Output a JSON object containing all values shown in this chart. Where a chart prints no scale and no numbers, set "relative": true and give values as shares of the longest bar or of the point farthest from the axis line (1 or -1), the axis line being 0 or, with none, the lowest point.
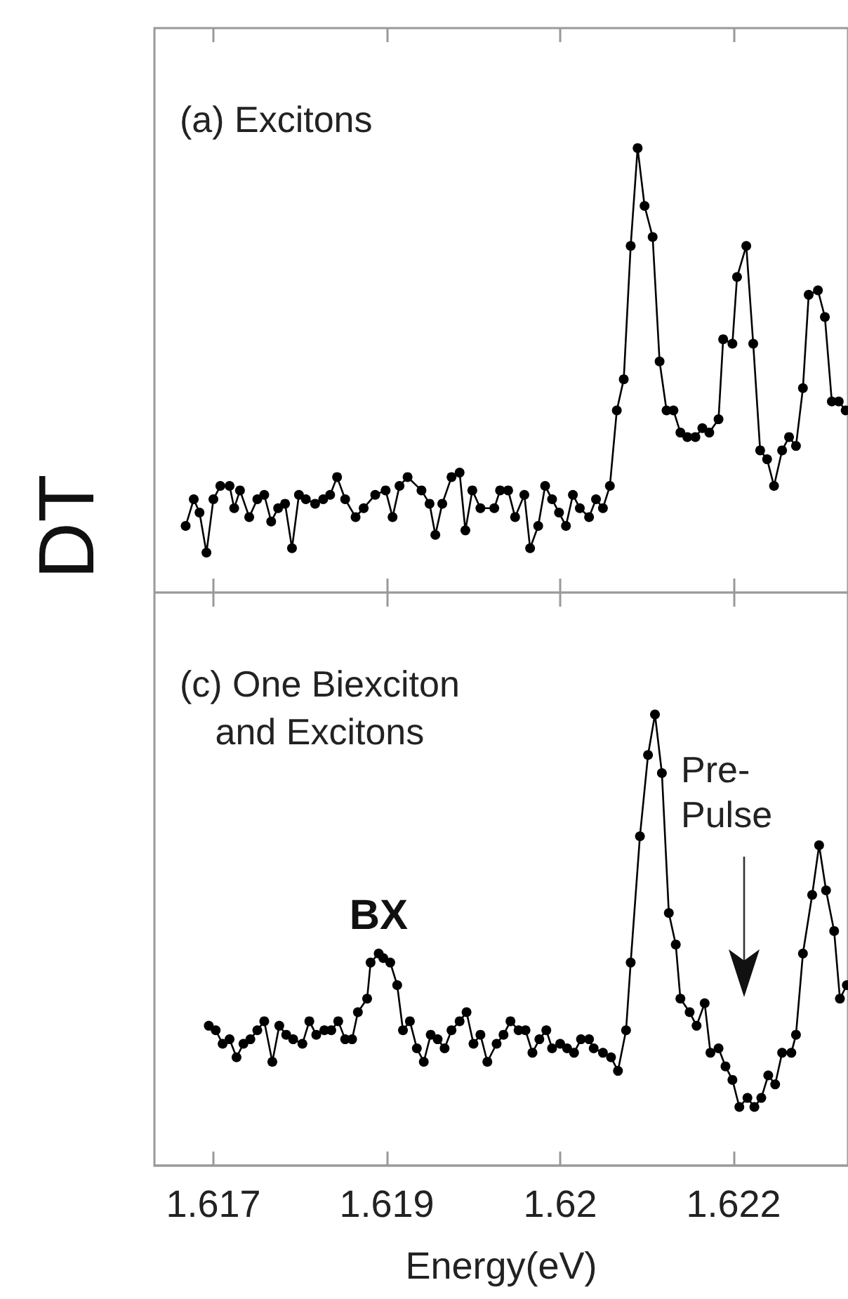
{
  "chart_data": [
    {
      "type": "line",
      "ylabel": "DT",
      "annotations": [
        "(a) Excitons"
      ],
      "relative": true,
      "marker": "circle",
      "line_style": "solid",
      "grid": false,
      "tick_labels": false,
      "xlim": [
        1.61699,
        1.62299
      ],
      "xticks": [
        {
          "value": 1.6175,
          "label": null
        },
        {
          "value": 1.619,
          "label": null
        },
        {
          "value": 1.6205,
          "label": null
        },
        {
          "value": 1.622,
          "label": null
        }
      ],
      "series": [
        {
          "color": "#000000",
          "x": [
            1.61726,
            1.61733,
            1.61738,
            1.61744,
            1.6175,
            1.61756,
            1.61764,
            1.61768,
            1.61773,
            1.61781,
            1.61788,
            1.61794,
            1.618,
            1.61806,
            1.61812,
            1.61818,
            1.61824,
            1.6183,
            1.61838,
            1.61845,
            1.61851,
            1.61857,
            1.61864,
            1.61873,
            1.6188,
            1.6189,
            1.61899,
            1.61905,
            1.61911,
            1.61918,
            1.6193,
            1.61937,
            1.61942,
            1.61948,
            1.61956,
            1.61963,
            1.61968,
            1.61974,
            1.61981,
            1.61993,
            1.61998,
            1.62005,
            1.62011,
            1.62019,
            1.62024,
            1.62031,
            1.62037,
            1.62043,
            1.62049,
            1.62055,
            1.62061,
            1.62067,
            1.62075,
            1.62081,
            1.62087,
            1.62093,
            1.62099,
            1.62105,
            1.62111,
            1.62117,
            1.62123,
            1.6213,
            1.62136,
            1.62142,
            1.62148,
            1.62154,
            1.6216,
            1.62167,
            1.62173,
            1.62179,
            1.62187,
            1.62191,
            1.62199,
            1.62203,
            1.62211,
            1.62217,
            1.62223,
            1.62229,
            1.62235,
            1.62242,
            1.62248,
            1.62254,
            1.6226,
            1.62265,
            1.62273,
            1.62279,
            1.62285,
            1.62291,
            1.62297
          ],
          "values": [
            0.15,
            0.21,
            0.18,
            0.09,
            0.21,
            0.24,
            0.24,
            0.19,
            0.23,
            0.17,
            0.21,
            0.22,
            0.16,
            0.19,
            0.2,
            0.1,
            0.22,
            0.21,
            0.2,
            0.21,
            0.22,
            0.26,
            0.21,
            0.17,
            0.19,
            0.22,
            0.23,
            0.17,
            0.24,
            0.26,
            0.23,
            0.2,
            0.13,
            0.2,
            0.26,
            0.27,
            0.14,
            0.23,
            0.19,
            0.19,
            0.23,
            0.23,
            0.17,
            0.22,
            0.1,
            0.15,
            0.24,
            0.21,
            0.18,
            0.15,
            0.22,
            0.19,
            0.17,
            0.21,
            0.19,
            0.24,
            0.41,
            0.48,
            0.78,
            1.0,
            0.87,
            0.8,
            0.52,
            0.41,
            0.41,
            0.36,
            0.35,
            0.35,
            0.37,
            0.36,
            0.39,
            0.57,
            0.56,
            0.71,
            0.78,
            0.56,
            0.32,
            0.3,
            0.24,
            0.32,
            0.35,
            0.33,
            0.46,
            0.67,
            0.68,
            0.62,
            0.43,
            0.43,
            0.41
          ]
        }
      ]
    },
    {
      "type": "line",
      "xlabel": "Energy(eV)",
      "annotations": [
        "(c) One Biexciton\nand Excitons",
        {
          "text": "BX",
          "x": 1.61893,
          "y": 0.47
        },
        "Pre-\nPulse"
      ],
      "relative": true,
      "marker": "circle",
      "line_style": "solid",
      "grid": false,
      "tick_labels": "x",
      "xlim": [
        1.61699,
        1.62299
      ],
      "xticks": [
        {
          "value": 1.6175,
          "label": "1.617"
        },
        {
          "value": 1.619,
          "label": "1.619"
        },
        {
          "value": 1.6205,
          "label": "1.62"
        },
        {
          "value": 1.622,
          "label": "1.622"
        }
      ],
      "series": [
        {
          "color": "#000000",
          "x": [
            1.61746,
            1.61752,
            1.61758,
            1.61764,
            1.6177,
            1.61776,
            1.61782,
            1.61788,
            1.61794,
            1.61801,
            1.61807,
            1.61813,
            1.61819,
            1.61827,
            1.61833,
            1.61839,
            1.61846,
            1.61852,
            1.61858,
            1.61864,
            1.6187,
            1.61875,
            1.61883,
            1.61886,
            1.61893,
            1.61897,
            1.61903,
            1.61909,
            1.61914,
            1.6192,
            1.61926,
            1.61932,
            1.61938,
            1.61944,
            1.6195,
            1.61956,
            1.61963,
            1.61969,
            1.61975,
            1.61981,
            1.61987,
            1.61995,
            1.62001,
            1.62007,
            1.62014,
            1.6202,
            1.62026,
            1.62032,
            1.62038,
            1.62043,
            1.6205,
            1.62056,
            1.62062,
            1.62068,
            1.62075,
            1.62079,
            1.62087,
            1.62094,
            1.621,
            1.62107,
            1.62111,
            1.62119,
            1.62126,
            1.62132,
            1.62138,
            1.62144,
            1.6215,
            1.62154,
            1.62162,
            1.62168,
            1.62175,
            1.6218,
            1.62187,
            1.62193,
            1.62199,
            1.62205,
            1.62212,
            1.62218,
            1.62224,
            1.6223,
            1.62236,
            1.62242,
            1.6225,
            1.62254,
            1.6226,
            1.62268,
            1.62274,
            1.6228,
            1.62287,
            1.62292,
            1.62298
          ],
          "values": [
            0.31,
            0.3,
            0.27,
            0.28,
            0.24,
            0.27,
            0.28,
            0.3,
            0.32,
            0.23,
            0.31,
            0.29,
            0.28,
            0.27,
            0.32,
            0.29,
            0.3,
            0.3,
            0.32,
            0.28,
            0.28,
            0.34,
            0.37,
            0.45,
            0.47,
            0.46,
            0.45,
            0.4,
            0.3,
            0.32,
            0.26,
            0.23,
            0.29,
            0.28,
            0.26,
            0.3,
            0.32,
            0.34,
            0.27,
            0.29,
            0.23,
            0.27,
            0.29,
            0.32,
            0.3,
            0.3,
            0.25,
            0.28,
            0.3,
            0.26,
            0.27,
            0.26,
            0.25,
            0.28,
            0.28,
            0.26,
            0.25,
            0.24,
            0.21,
            0.3,
            0.45,
            0.73,
            0.91,
            1.0,
            0.87,
            0.56,
            0.49,
            0.37,
            0.34,
            0.31,
            0.36,
            0.25,
            0.26,
            0.22,
            0.19,
            0.13,
            0.15,
            0.13,
            0.15,
            0.2,
            0.18,
            0.25,
            0.25,
            0.29,
            0.47,
            0.6,
            0.71,
            0.61,
            0.52,
            0.37,
            0.4
          ]
        }
      ]
    }
  ]
}
